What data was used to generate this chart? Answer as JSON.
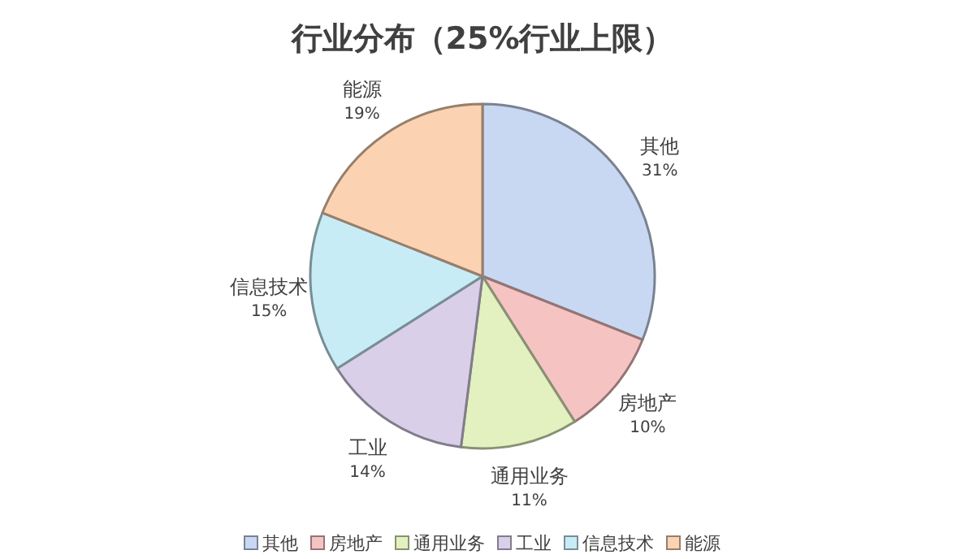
{
  "chart_data": {
    "type": "pie",
    "title": "行业分布（25%行业上限）",
    "categories": [
      "其他",
      "房地产",
      "通用业务",
      "工业",
      "信息技术",
      "能源"
    ],
    "values": [
      31,
      10,
      11,
      14,
      15,
      19
    ],
    "value_labels": [
      "31%",
      "10%",
      "11%",
      "14%",
      "15%",
      "19%"
    ],
    "colors": [
      "#c9d8f2",
      "#f6c3c3",
      "#e2f1bf",
      "#d9cfe8",
      "#c8ecf6",
      "#fcd3b2"
    ],
    "legend": "bottom"
  }
}
